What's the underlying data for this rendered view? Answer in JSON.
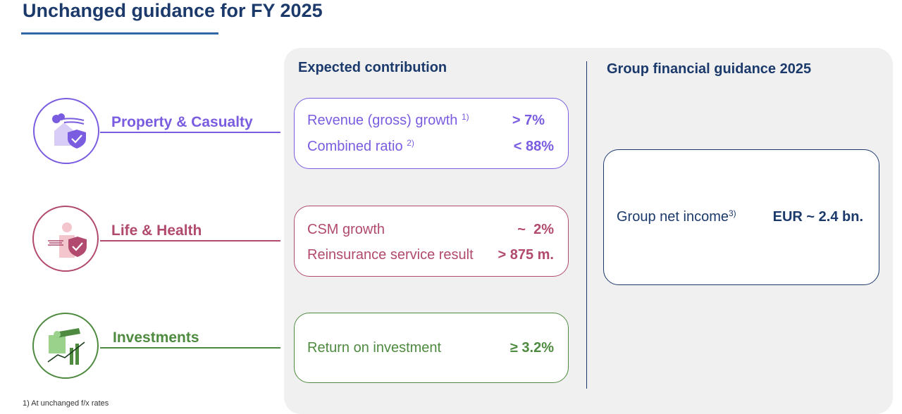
{
  "title": "Unchanged guidance for FY 2025",
  "columns": {
    "expected": "Expected contribution",
    "group": "Group financial guidance 2025"
  },
  "colors": {
    "navy": "#1b3a6b",
    "pc": "#7a5ce0",
    "lh": "#b14a6e",
    "inv": "#4e8a3f"
  },
  "segments": {
    "pc": {
      "label": "Property & Casualty",
      "icon": "house-shield-icon",
      "metrics": [
        {
          "label": "Revenue (gross) growth",
          "note": "1)",
          "value": "> 7%"
        },
        {
          "label": "Combined ratio",
          "note": "2)",
          "value": "< 88%"
        }
      ]
    },
    "lh": {
      "label": "Life & Health",
      "icon": "person-shield-icon",
      "metrics": [
        {
          "label": "CSM growth",
          "value": "~  2%"
        },
        {
          "label": "Reinsurance service result",
          "value": "> 875 m."
        }
      ]
    },
    "inv": {
      "label": "Investments",
      "icon": "telescope-growth-icon",
      "metrics": [
        {
          "label": "Return on investment",
          "value": "≥ 3.2%"
        }
      ]
    }
  },
  "group": {
    "label": "Group net income",
    "note": "3)",
    "value": "EUR ~ 2.4 bn."
  },
  "footnote": "1) At unchanged f/x rates"
}
